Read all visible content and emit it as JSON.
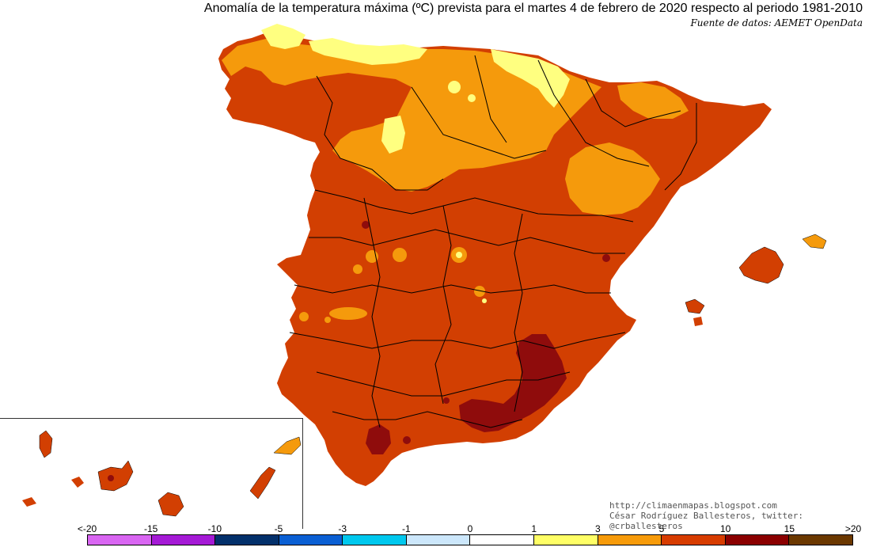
{
  "title": "Anomalía de la temperatura máxima (ºC) prevista para el martes 4 de febrero de 2020 respecto al periodo 1981-2010",
  "source": "Fuente de datos: AEMET OpenData",
  "credits": {
    "url": "http://climaenmapas.blogspot.com",
    "author": "César Rodríguez Ballesteros, twitter: @crballesteros"
  },
  "legend": {
    "labels": [
      "<-20",
      "-15",
      "-10",
      "-5",
      "-3",
      "-1",
      "0",
      "1",
      "3",
      "5",
      "10",
      "15",
      ">20"
    ],
    "colors": [
      "#d966f2",
      "#a51ad6",
      "#03306b",
      "#0a5fd3",
      "#00c8ee",
      "#cce7fb",
      "#ffffff",
      "#ffff66",
      "#f79b0a",
      "#d73c00",
      "#8b0000",
      "#6b3800"
    ]
  },
  "colors": {
    "ocean": "#ffffff",
    "band_1_3": "#ffff80",
    "band_3_5": "#f59a0c",
    "band_5_10": "#d23f02",
    "band_10_15": "#8f0c0c",
    "border": "#000000"
  }
}
